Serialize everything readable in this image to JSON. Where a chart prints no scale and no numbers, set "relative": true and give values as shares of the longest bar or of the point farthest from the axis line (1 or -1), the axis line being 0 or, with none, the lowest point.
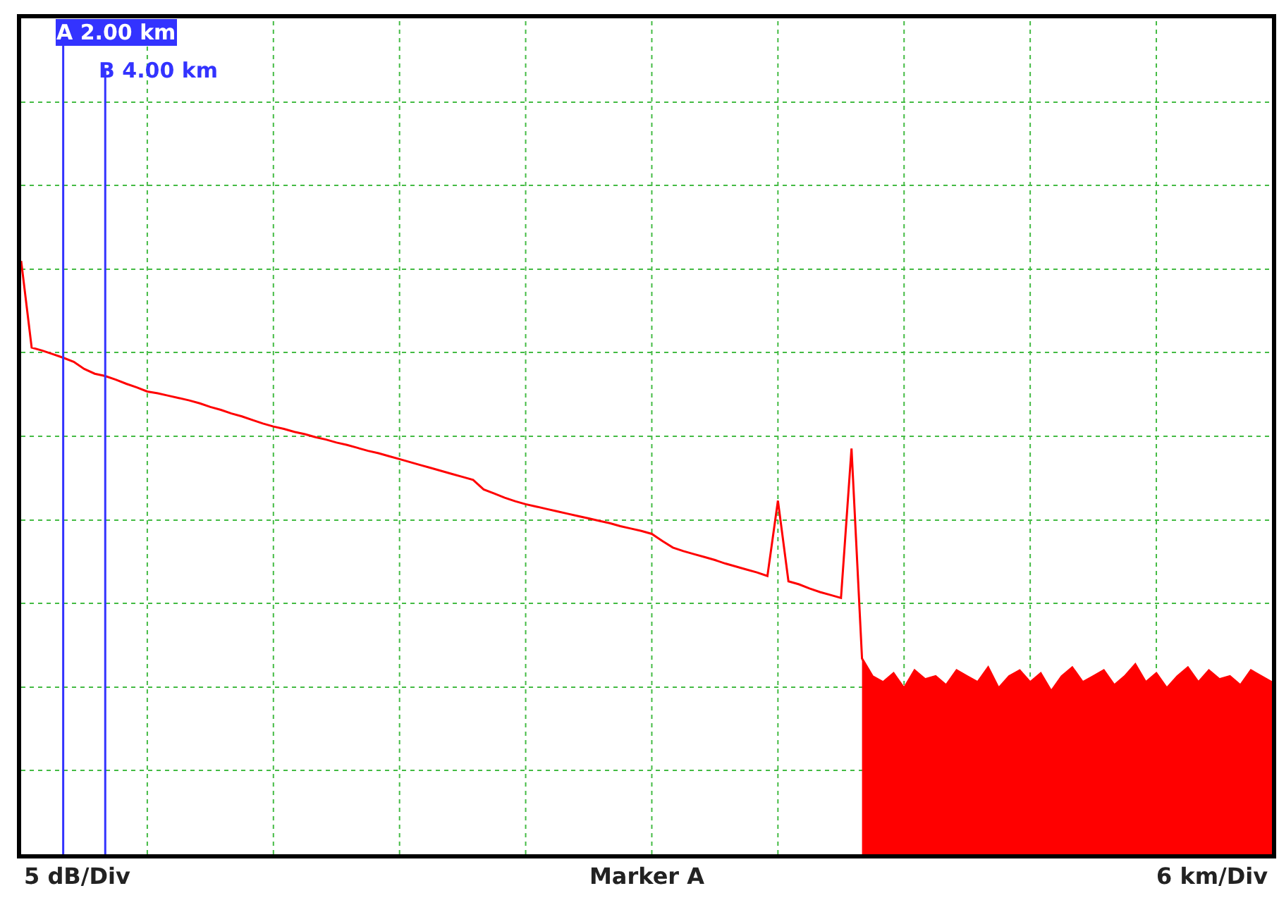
{
  "chart_data": {
    "type": "line",
    "relative": true,
    "categories": [
      null,
      null,
      null,
      null,
      null,
      null,
      null,
      null,
      null,
      null,
      null,
      null,
      null,
      null,
      null,
      null,
      null,
      null,
      null,
      null,
      null,
      null,
      null,
      null,
      null,
      null,
      null,
      null,
      null,
      null,
      null,
      null,
      null,
      null,
      null,
      null,
      null,
      null,
      null,
      null,
      null,
      null,
      null,
      null,
      null,
      null,
      null,
      null,
      null,
      null,
      null,
      null,
      null,
      null,
      null,
      null,
      null,
      null,
      null,
      null,
      null,
      null,
      null,
      null,
      null,
      null,
      null,
      null,
      null,
      null,
      null,
      null,
      null,
      null,
      null,
      null,
      null,
      null,
      null,
      null,
      null,
      null,
      null,
      null,
      null,
      null,
      null,
      null,
      null,
      null,
      null,
      null,
      null,
      null,
      null,
      null,
      null,
      null,
      null,
      null,
      null,
      null,
      null,
      null,
      null,
      null,
      null,
      null,
      null,
      null,
      null,
      null,
      null,
      null,
      null,
      null,
      null,
      null,
      null,
      null
    ],
    "grid": true,
    "marker": "none",
    "line_style": "solid",
    "series": [
      {
        "color": "#ff0000",
        "values": [
          1.0,
          0.854,
          0.849,
          0.843,
          0.837,
          0.83,
          0.818,
          0.81,
          0.806,
          0.8,
          0.793,
          0.787,
          0.78,
          0.777,
          0.773,
          0.769,
          0.765,
          0.76,
          0.754,
          0.749,
          0.743,
          0.738,
          0.732,
          0.726,
          0.721,
          0.717,
          0.712,
          0.708,
          0.703,
          0.699,
          0.694,
          0.69,
          0.685,
          0.68,
          0.676,
          0.671,
          0.666,
          0.661,
          0.656,
          0.651,
          0.646,
          0.641,
          0.636,
          0.631,
          0.615,
          0.608,
          0.601,
          0.595,
          0.59,
          0.586,
          0.582,
          0.578,
          0.574,
          0.57,
          0.566,
          0.562,
          0.558,
          0.553,
          0.549,
          0.545,
          0.54,
          0.528,
          0.517,
          0.511,
          0.506,
          0.501,
          0.496,
          0.49,
          0.485,
          0.48,
          0.475,
          0.469,
          0.596,
          0.46,
          0.455,
          0.448,
          0.442,
          0.437,
          0.432,
          0.684,
          0.33,
          0.3,
          0.29,
          0.305,
          0.28,
          0.31,
          0.295,
          0.3,
          0.285,
          0.31,
          0.3,
          0.29,
          0.315,
          0.28,
          0.3,
          0.31,
          0.29,
          0.305,
          0.275,
          0.3,
          0.315,
          0.29,
          0.3,
          0.31,
          0.285,
          0.3,
          0.32,
          0.29,
          0.305,
          0.28,
          0.3,
          0.315,
          0.29,
          0.31,
          0.295,
          0.3,
          0.285,
          0.31,
          0.3,
          0.29
        ],
        "lower": [
          null,
          null,
          null,
          null,
          null,
          null,
          null,
          null,
          null,
          null,
          null,
          null,
          null,
          null,
          null,
          null,
          null,
          null,
          null,
          null,
          null,
          null,
          null,
          null,
          null,
          null,
          null,
          null,
          null,
          null,
          null,
          null,
          null,
          null,
          null,
          null,
          null,
          null,
          null,
          null,
          null,
          null,
          null,
          null,
          null,
          null,
          null,
          null,
          null,
          null,
          null,
          null,
          null,
          null,
          null,
          null,
          null,
          null,
          null,
          null,
          null,
          null,
          null,
          null,
          null,
          null,
          null,
          null,
          null,
          null,
          null,
          null,
          null,
          null,
          null,
          null,
          null,
          null,
          null,
          null,
          0,
          0,
          0,
          0,
          0,
          0,
          0,
          0,
          0,
          0,
          0,
          0,
          0,
          0,
          0,
          0,
          0,
          0,
          0,
          0,
          0,
          0,
          0,
          0,
          0,
          0,
          0,
          0,
          0,
          0,
          0,
          0,
          0,
          0,
          0,
          0,
          0,
          0,
          0,
          0
        ],
        "upper": [
          null,
          null,
          null,
          null,
          null,
          null,
          null,
          null,
          null,
          null,
          null,
          null,
          null,
          null,
          null,
          null,
          null,
          null,
          null,
          null,
          null,
          null,
          null,
          null,
          null,
          null,
          null,
          null,
          null,
          null,
          null,
          null,
          null,
          null,
          null,
          null,
          null,
          null,
          null,
          null,
          null,
          null,
          null,
          null,
          null,
          null,
          null,
          null,
          null,
          null,
          null,
          null,
          null,
          null,
          null,
          null,
          null,
          null,
          null,
          null,
          null,
          null,
          null,
          null,
          null,
          null,
          null,
          null,
          null,
          null,
          null,
          null,
          null,
          null,
          null,
          null,
          null,
          null,
          null,
          null,
          0.33,
          0.3,
          0.29,
          0.305,
          0.28,
          0.31,
          0.295,
          0.3,
          0.285,
          0.31,
          0.3,
          0.29,
          0.315,
          0.28,
          0.3,
          0.31,
          0.29,
          0.305,
          0.275,
          0.3,
          0.315,
          0.29,
          0.3,
          0.31,
          0.285,
          0.3,
          0.32,
          0.29,
          0.305,
          0.28,
          0.3,
          0.315,
          0.29,
          0.31,
          0.295,
          0.3,
          0.285,
          0.31,
          0.3,
          0.29
        ]
      }
    ],
    "annotations": [
      "A 2.00 km",
      "B 4.00 km",
      "5 dB/Div",
      "Marker A",
      "6 km/Div"
    ]
  }
}
